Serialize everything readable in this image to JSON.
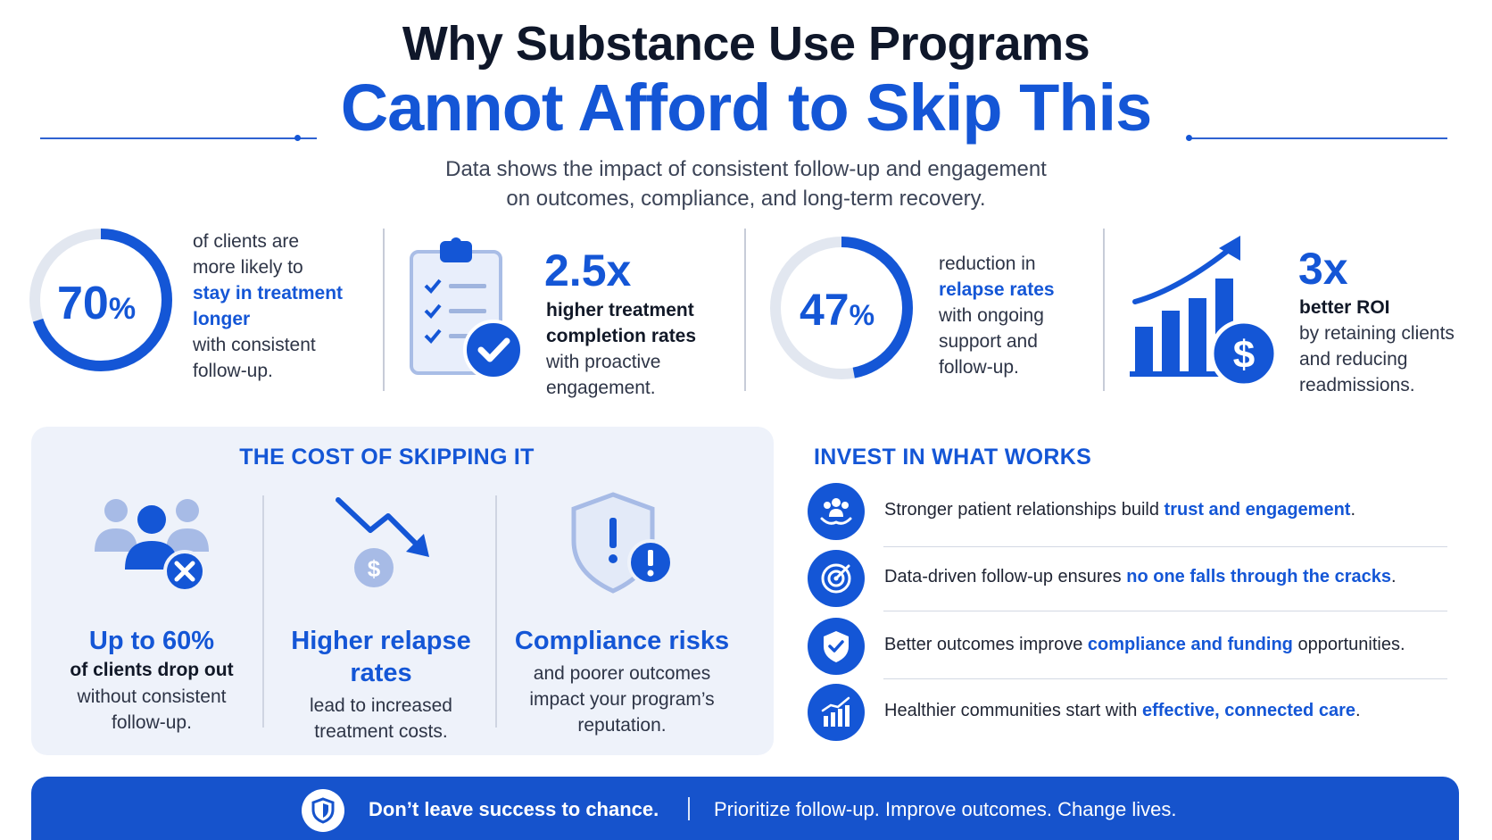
{
  "header": {
    "title_line1": "Why Substance Use Programs",
    "title_line2": "Cannot Afford to Skip This",
    "subtitle_line1": "Data shows the impact of consistent follow-up and engagement",
    "subtitle_line2": "on outcomes, compliance, and long-term recovery."
  },
  "stats": [
    {
      "value": "70",
      "unit": "%",
      "ring_fraction": 0.7,
      "line1": "of clients are",
      "line2": "more likely to",
      "highlight1": "stay in treatment",
      "highlight2": "longer",
      "line3": "with consistent",
      "line4": "follow-up."
    },
    {
      "value": "2.5x",
      "icon": "clipboard-check-icon",
      "bold1": "higher treatment",
      "bold2": "completion rates",
      "line1": "with proactive",
      "line2": "engagement."
    },
    {
      "value": "47",
      "unit": "%",
      "ring_fraction": 0.47,
      "line1": "reduction in",
      "highlight1": "relapse rates",
      "line2": "with ongoing",
      "line3": "support and",
      "line4": "follow-up."
    },
    {
      "value": "3x",
      "icon": "growth-chart-dollar-icon",
      "bold1": "better ROI",
      "line1": "by retaining clients",
      "line2": "and reducing",
      "line3": "readmissions."
    }
  ],
  "cost": {
    "title": "THE COST OF SKIPPING IT",
    "items": [
      {
        "icon": "users-dropout-icon",
        "head1": "Up to 60%",
        "bold": "of clients drop out",
        "body1": "without consistent",
        "body2": "follow-up."
      },
      {
        "icon": "declining-cost-icon",
        "head1": "Higher relapse",
        "head2": "rates",
        "body1": "lead to increased",
        "body2": "treatment costs."
      },
      {
        "icon": "shield-warning-icon",
        "head1": "Compliance risks",
        "body1": "and poorer outcomes",
        "body2": "impact your program’s",
        "body3": "reputation."
      }
    ]
  },
  "invest": {
    "title": "INVEST IN WHAT WORKS",
    "items": [
      {
        "icon": "care-hands-icon",
        "text": "Stronger patient relationships build ",
        "highlight": "trust and engagement",
        "tail": "."
      },
      {
        "icon": "target-icon",
        "text": "Data-driven follow-up ensures ",
        "highlight": "no one falls through the cracks",
        "tail": "."
      },
      {
        "icon": "shield-check-icon",
        "text": "Better outcomes improve ",
        "highlight": "compliance and funding",
        "tail": " opportunities."
      },
      {
        "icon": "growth-chart-icon",
        "text": "Healthier communities start with ",
        "highlight": "effective, connected care",
        "tail": "."
      }
    ]
  },
  "banner": {
    "bold": "Don’t leave success to chance.",
    "text": "Prioritize follow-up. Improve outcomes. Change lives."
  },
  "colors": {
    "accent": "#1456d6",
    "ring_track": "#e2e7f0",
    "panel": "#eef2fa",
    "banner": "#1653cc"
  }
}
